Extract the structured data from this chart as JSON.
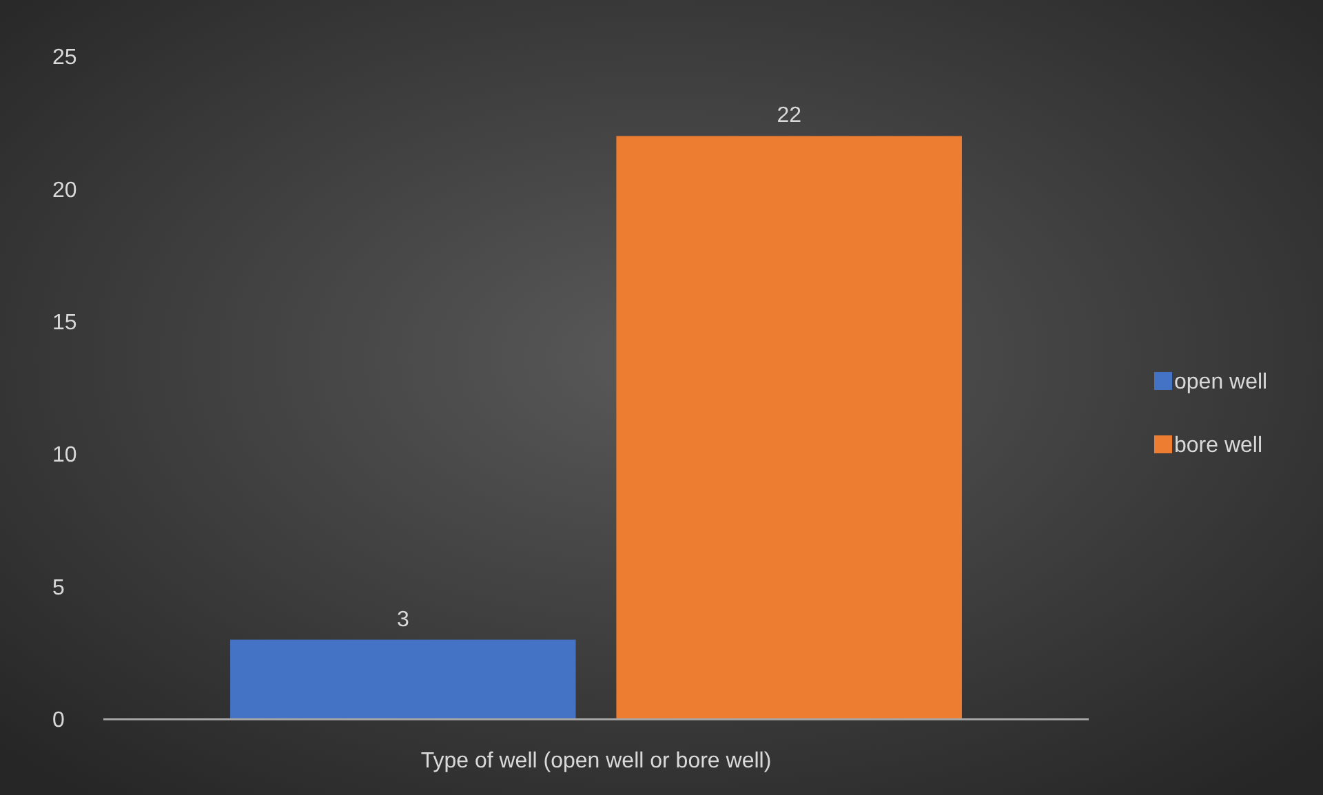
{
  "chart_data": {
    "type": "bar",
    "categories": [
      "Type of well (open well or bore well)"
    ],
    "series": [
      {
        "name": "open well",
        "color": "#4472c4",
        "values": [
          3
        ]
      },
      {
        "name": "bore well",
        "color": "#ed7d31",
        "values": [
          22
        ]
      }
    ],
    "ylim": [
      0,
      25
    ],
    "yticks": [
      0,
      5,
      10,
      15,
      20,
      25
    ],
    "data_labels": true,
    "legend": "right",
    "grid": false
  }
}
